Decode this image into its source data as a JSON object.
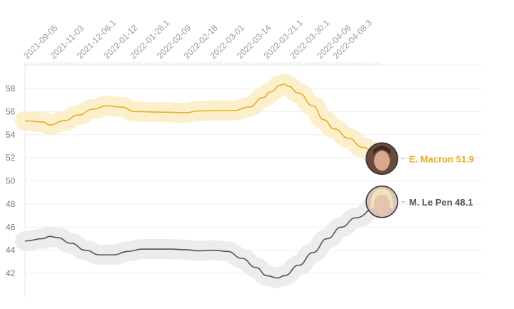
{
  "chart_data": {
    "type": "line",
    "title": "",
    "xlabel": "",
    "ylabel": "",
    "ylim": [
      40,
      59.5
    ],
    "xlim": [
      0,
      100
    ],
    "grid": true,
    "y_ticks": [
      42,
      44,
      46,
      48,
      50,
      52,
      54,
      56,
      58
    ],
    "x_ticks": [
      {
        "label": "2021-09-05",
        "x": 0
      },
      {
        "label": "2021-11-03",
        "x": 7.5
      },
      {
        "label": "2021-12-06.1",
        "x": 15
      },
      {
        "label": "2022-01-12",
        "x": 22.5
      },
      {
        "label": "2022-01-26.1",
        "x": 30
      },
      {
        "label": "2022-02-09",
        "x": 37.5
      },
      {
        "label": "2022-02-18",
        "x": 45
      },
      {
        "label": "2022-03-01",
        "x": 52.5
      },
      {
        "label": "2022-03-14",
        "x": 60
      },
      {
        "label": "2022-03-21.1",
        "x": 67.5
      },
      {
        "label": "2022-03-30.1",
        "x": 75
      },
      {
        "label": "2022-04-06",
        "x": 82.5
      },
      {
        "label": "2022-04-08.3",
        "x": 87
      }
    ],
    "series": [
      {
        "name": "E. Macron",
        "end_label": "E. Macron 51.9",
        "color": "#e6ae22",
        "band_color": "#fcefcb",
        "x": [
          0,
          5,
          7,
          11,
          15,
          19,
          23,
          27,
          31,
          39,
          45,
          49,
          53,
          59,
          63,
          67,
          69,
          72,
          73,
          74,
          77,
          81,
          84,
          87,
          91,
          95,
          100
        ],
        "y": [
          55.2,
          55.1,
          54.85,
          55.2,
          55.7,
          56.2,
          56.5,
          56.4,
          56.0,
          55.95,
          55.9,
          56.05,
          56.1,
          56.1,
          56.4,
          57.2,
          57.7,
          58.3,
          58.4,
          58.2,
          57.6,
          56.5,
          55.3,
          54.5,
          53.7,
          52.9,
          51.9
        ]
      },
      {
        "name": "M. Le Pen",
        "end_label": "M. Le Pen 48.1",
        "color": "#555555",
        "band_color": "#ececec",
        "x": [
          0,
          5,
          7,
          9,
          13,
          17,
          21,
          25,
          29,
          33,
          41,
          45,
          49,
          53,
          57,
          61,
          65,
          68,
          71,
          73,
          77,
          81,
          85,
          89,
          93,
          100
        ],
        "y": [
          44.8,
          45.0,
          45.2,
          45.1,
          44.6,
          44.0,
          43.6,
          43.6,
          43.9,
          44.1,
          44.1,
          44.05,
          43.95,
          44.0,
          43.9,
          43.3,
          42.5,
          41.8,
          41.6,
          41.8,
          42.7,
          43.8,
          45.0,
          46.0,
          46.8,
          48.1
        ]
      }
    ]
  }
}
